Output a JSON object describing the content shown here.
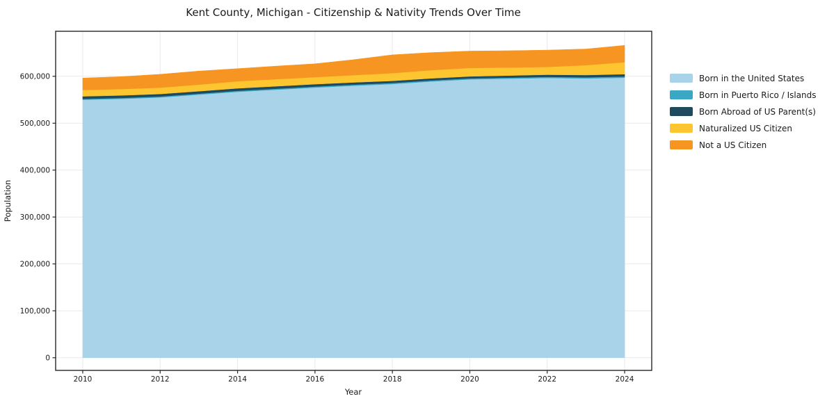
{
  "figure": {
    "background": "#ffffff",
    "grid_color": "#e9e9e9",
    "spine_color": "#262626",
    "text_color": "#1a1a1a"
  },
  "chart_data": {
    "type": "area",
    "stacked": true,
    "title": "Kent County, Michigan - Citizenship & Nativity Trends Over Time",
    "xlabel": "Year",
    "ylabel": "Population",
    "grid": true,
    "legend_position": "right-outside",
    "xlim": [
      2009.3,
      2024.7
    ],
    "ylim": [
      -27000,
      696000
    ],
    "x": [
      2010,
      2011,
      2012,
      2013,
      2014,
      2015,
      2016,
      2017,
      2018,
      2019,
      2020,
      2021,
      2022,
      2023,
      2024
    ],
    "x_ticks": [
      2010,
      2012,
      2014,
      2016,
      2018,
      2020,
      2022,
      2024
    ],
    "x_tick_labels": [
      "2010",
      "2012",
      "2014",
      "2016",
      "2018",
      "2020",
      "2022",
      "2024"
    ],
    "y_ticks": [
      0,
      100000,
      200000,
      300000,
      400000,
      500000,
      600000
    ],
    "y_tick_labels": [
      "0",
      "100,000",
      "200,000",
      "300,000",
      "400,000",
      "500,000",
      "600,000"
    ],
    "series": [
      {
        "name": "Born in the United States",
        "color": "#a8d3e8",
        "values": [
          550000,
          552000,
          555000,
          561000,
          567000,
          571500,
          576000,
          580000,
          583500,
          589000,
          593500,
          595000,
          596500,
          595500,
          597000
        ]
      },
      {
        "name": "Born in Puerto Rico / Islands",
        "color": "#3aa7c4",
        "values": [
          1800,
          1900,
          2000,
          2000,
          2100,
          2100,
          2200,
          2200,
          2300,
          2200,
          2100,
          2200,
          2300,
          2400,
          2500
        ]
      },
      {
        "name": "Born Abroad of US Parent(s)",
        "color": "#1f4a5e",
        "values": [
          5500,
          5400,
          5300,
          5200,
          5300,
          5200,
          5000,
          4800,
          4500,
          4400,
          4200,
          4400,
          4600,
          4800,
          5000
        ]
      },
      {
        "name": "Naturalized US Citizen",
        "color": "#fdc52f",
        "values": [
          13500,
          13500,
          13500,
          14000,
          15000,
          15000,
          15000,
          15500,
          16500,
          17500,
          18000,
          17000,
          16500,
          21000,
          25500
        ]
      },
      {
        "name": "Not a US Citizen",
        "color": "#f79522",
        "values": [
          25500,
          26500,
          28500,
          29000,
          27000,
          28000,
          28500,
          33000,
          39000,
          37500,
          36000,
          36000,
          36000,
          34500,
          36000
        ]
      }
    ]
  }
}
